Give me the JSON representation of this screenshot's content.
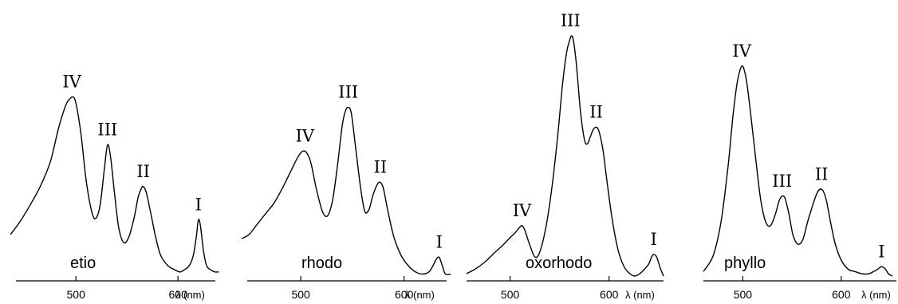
{
  "chart_data": [
    {
      "type": "line",
      "panel_label": "etio",
      "xlabel": "λ (nm)",
      "x_ticks": [
        500,
        600
      ],
      "xlim": [
        435,
        635
      ],
      "ylim": [
        0,
        1
      ],
      "grid": false,
      "peaks": [
        {
          "label": "IV",
          "x": 496,
          "y": 0.86
        },
        {
          "label": "III",
          "x": 531,
          "y": 0.63
        },
        {
          "label": "II",
          "x": 566,
          "y": 0.43
        },
        {
          "label": "I",
          "x": 620,
          "y": 0.27
        }
      ],
      "series": [
        {
          "x": [
            436,
            445,
            455,
            465,
            475,
            483,
            490,
            494,
            497,
            500,
            505,
            510,
            516,
            520,
            524,
            528,
            531,
            534,
            538,
            542,
            547,
            552,
            557,
            561,
            564,
            566,
            569,
            573,
            578,
            583,
            590,
            597,
            602,
            606,
            611,
            615,
            618,
            620,
            622,
            625,
            628,
            632,
            636,
            640
          ],
          "y": [
            0.2,
            0.26,
            0.34,
            0.43,
            0.55,
            0.71,
            0.82,
            0.85,
            0.86,
            0.83,
            0.68,
            0.46,
            0.3,
            0.28,
            0.35,
            0.52,
            0.63,
            0.57,
            0.39,
            0.23,
            0.16,
            0.19,
            0.28,
            0.38,
            0.42,
            0.43,
            0.4,
            0.31,
            0.19,
            0.1,
            0.05,
            0.03,
            0.02,
            0.03,
            0.05,
            0.1,
            0.19,
            0.27,
            0.24,
            0.12,
            0.05,
            0.03,
            0.02,
            0.02
          ]
        }
      ]
    },
    {
      "type": "line",
      "panel_label": "rhodo",
      "xlabel": "λ (nm)",
      "x_ticks": [
        500,
        600
      ],
      "xlim": [
        442,
        645
      ],
      "ylim": [
        0,
        1
      ],
      "grid": false,
      "peaks": [
        {
          "label": "IV",
          "x": 504,
          "y": 0.6
        },
        {
          "label": "III",
          "x": 546,
          "y": 0.81
        },
        {
          "label": "II",
          "x": 577,
          "y": 0.45
        },
        {
          "label": "I",
          "x": 634,
          "y": 0.09
        }
      ],
      "series": [
        {
          "x": [
            443,
            450,
            458,
            466,
            474,
            482,
            490,
            497,
            502,
            506,
            510,
            515,
            521,
            526,
            531,
            536,
            540,
            543,
            546,
            549,
            553,
            558,
            562,
            566,
            570,
            574,
            577,
            580,
            584,
            590,
            597,
            604,
            611,
            618,
            624,
            628,
            631,
            634,
            637,
            640,
            645
          ],
          "y": [
            0.18,
            0.2,
            0.25,
            0.3,
            0.35,
            0.42,
            0.5,
            0.57,
            0.6,
            0.59,
            0.54,
            0.42,
            0.31,
            0.29,
            0.37,
            0.55,
            0.72,
            0.79,
            0.81,
            0.78,
            0.62,
            0.42,
            0.31,
            0.32,
            0.39,
            0.44,
            0.45,
            0.42,
            0.32,
            0.19,
            0.1,
            0.05,
            0.02,
            0.01,
            0.02,
            0.05,
            0.08,
            0.09,
            0.05,
            0.01,
            0.01
          ]
        }
      ]
    },
    {
      "type": "line",
      "panel_label": "oxorhodo",
      "xlabel": "λ (nm)",
      "x_ticks": [
        500,
        600
      ],
      "xlim": [
        456,
        655
      ],
      "ylim": [
        0,
        1
      ],
      "grid": false,
      "peaks": [
        {
          "label": "IV",
          "x": 512,
          "y": 0.21
        },
        {
          "label": "III",
          "x": 561,
          "y": 1.0
        },
        {
          "label": "II",
          "x": 587,
          "y": 0.62
        },
        {
          "label": "I",
          "x": 645,
          "y": 0.09
        }
      ],
      "series": [
        {
          "x": [
            456,
            465,
            475,
            485,
            493,
            500,
            505,
            509,
            512,
            515,
            519,
            525,
            530,
            536,
            542,
            548,
            553,
            557,
            560,
            562,
            564,
            567,
            571,
            575,
            578,
            581,
            584,
            587,
            590,
            594,
            598,
            603,
            609,
            615,
            621,
            626,
            631,
            636,
            640,
            643,
            645,
            648,
            652,
            655
          ],
          "y": [
            0.01,
            0.03,
            0.06,
            0.1,
            0.13,
            0.16,
            0.18,
            0.2,
            0.21,
            0.19,
            0.14,
            0.08,
            0.1,
            0.2,
            0.36,
            0.58,
            0.8,
            0.93,
            0.98,
            1.0,
            0.98,
            0.88,
            0.69,
            0.57,
            0.55,
            0.58,
            0.61,
            0.62,
            0.6,
            0.52,
            0.39,
            0.24,
            0.11,
            0.04,
            0.01,
            0.0,
            0.01,
            0.03,
            0.05,
            0.08,
            0.09,
            0.08,
            0.03,
            0.0
          ]
        }
      ]
    },
    {
      "type": "line",
      "panel_label": "phyllo",
      "xlabel": "λ (nm)",
      "x_ticks": [
        500,
        600
      ],
      "xlim": [
        460,
        652
      ],
      "ylim": [
        0,
        1
      ],
      "grid": false,
      "peaks": [
        {
          "label": "IV",
          "x": 499,
          "y": 0.92
        },
        {
          "label": "III",
          "x": 540,
          "y": 0.35
        },
        {
          "label": "II",
          "x": 580,
          "y": 0.38
        },
        {
          "label": "I",
          "x": 641,
          "y": 0.04
        }
      ],
      "series": [
        {
          "x": [
            460,
            470,
            478,
            485,
            490,
            494,
            497,
            499,
            501,
            504,
            508,
            513,
            518,
            523,
            528,
            533,
            537,
            540,
            543,
            547,
            551,
            556,
            561,
            566,
            571,
            575,
            578,
            580,
            582,
            585,
            589,
            594,
            600,
            607,
            614,
            621,
            628,
            633,
            637,
            640,
            642,
            645,
            648,
            652
          ],
          "y": [
            0.02,
            0.09,
            0.24,
            0.48,
            0.7,
            0.84,
            0.9,
            0.92,
            0.91,
            0.85,
            0.71,
            0.52,
            0.34,
            0.24,
            0.22,
            0.27,
            0.33,
            0.35,
            0.34,
            0.27,
            0.18,
            0.14,
            0.16,
            0.24,
            0.31,
            0.36,
            0.38,
            0.38,
            0.37,
            0.33,
            0.24,
            0.14,
            0.07,
            0.03,
            0.02,
            0.01,
            0.01,
            0.02,
            0.03,
            0.04,
            0.04,
            0.03,
            0.01,
            0.0
          ]
        }
      ]
    }
  ]
}
